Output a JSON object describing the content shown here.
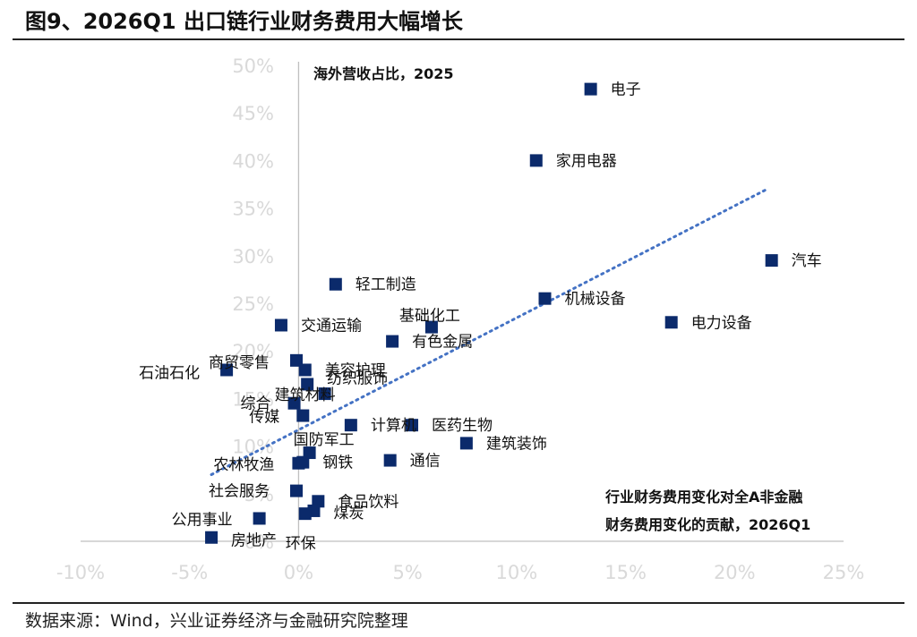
{
  "figure_title": "图9、2026Q1 出口链行业财务费用大幅增长",
  "source_note": "数据来源：Wind，兴业证券经济与金融研究院整理",
  "colors": {
    "marker": "#0b2a6b",
    "trend": "#4472c4",
    "tick": "#d9d9d9",
    "axis": "#bfbfbf"
  },
  "chart_data": {
    "type": "scatter",
    "xlim": [
      -10,
      25
    ],
    "ylim": [
      0,
      50
    ],
    "x_ticks": [
      "-10%",
      "-5%",
      "0%",
      "5%",
      "10%",
      "15%",
      "20%",
      "25%"
    ],
    "y_ticks": [
      "0%",
      "5%",
      "10%",
      "15%",
      "20%",
      "25%",
      "30%",
      "35%",
      "40%",
      "45%",
      "50%"
    ],
    "y_axis_title": "海外营收占比，2025",
    "x_axis_title_line1": "行业财务费用变化对全A非金融",
    "x_axis_title_line2": "财务费用变化的贡献，2026Q1",
    "trendline": {
      "style": "dotted",
      "x": [
        -4.0,
        21.5
      ],
      "y": [
        7.0,
        37.0
      ]
    },
    "points": [
      {
        "name": "电子",
        "x": 13.4,
        "y": 47.5
      },
      {
        "name": "家用电器",
        "x": 10.9,
        "y": 40.0
      },
      {
        "name": "汽车",
        "x": 21.7,
        "y": 29.5
      },
      {
        "name": "轻工制造",
        "x": 1.7,
        "y": 27.0
      },
      {
        "name": "机械设备",
        "x": 11.3,
        "y": 25.5
      },
      {
        "name": "基础化工",
        "x": 6.1,
        "y": 22.5
      },
      {
        "name": "电力设备",
        "x": 17.1,
        "y": 23.0
      },
      {
        "name": "交通运输",
        "x": -0.8,
        "y": 22.7
      },
      {
        "name": "有色金属",
        "x": 4.3,
        "y": 21.0
      },
      {
        "name": "商贸零售",
        "x": -0.1,
        "y": 19.0
      },
      {
        "name": "石油石化",
        "x": -3.3,
        "y": 18.0
      },
      {
        "name": "美容护理",
        "x": 0.3,
        "y": 18.0
      },
      {
        "name": "纺织服饰",
        "x": 0.4,
        "y": 16.5
      },
      {
        "name": "综合",
        "x": -0.2,
        "y": 14.5
      },
      {
        "name": "传媒",
        "x": 0.2,
        "y": 13.2
      },
      {
        "name": "建筑材料",
        "x": 1.2,
        "y": 15.5
      },
      {
        "name": "计算机",
        "x": 2.4,
        "y": 12.2
      },
      {
        "name": "医药生物",
        "x": 5.2,
        "y": 12.2
      },
      {
        "name": "建筑装饰",
        "x": 7.7,
        "y": 10.3
      },
      {
        "name": "国防军工",
        "x": 0.5,
        "y": 9.3
      },
      {
        "name": "农林牧渔",
        "x": 0.0,
        "y": 8.2
      },
      {
        "name": "钢铁",
        "x": 0.2,
        "y": 8.3
      },
      {
        "name": "通信",
        "x": 4.2,
        "y": 8.5
      },
      {
        "name": "社会服务",
        "x": -0.1,
        "y": 5.3
      },
      {
        "name": "食品饮料",
        "x": 0.9,
        "y": 4.2
      },
      {
        "name": "煤炭",
        "x": 0.7,
        "y": 3.2
      },
      {
        "name": "环保",
        "x": 0.3,
        "y": 2.9
      },
      {
        "name": "公用事业",
        "x": -1.8,
        "y": 2.4
      },
      {
        "name": "房地产",
        "x": -4.0,
        "y": 0.4
      }
    ]
  }
}
